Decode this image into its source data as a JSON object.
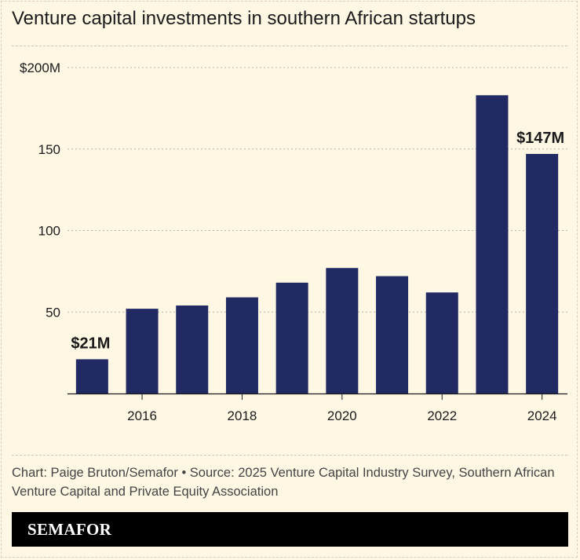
{
  "title": "Venture capital investments in southern African startups",
  "source": "Chart: Paige Bruton/Semafor • Source: 2025 Venture Capital Industry Survey, Southern African Venture Capital and Private Equity Association",
  "brand": "SEMAFOR",
  "colors": {
    "background": "#fdf7e4",
    "bar": "#222a63",
    "text": "#1a1a1a"
  },
  "chart_data": {
    "type": "bar",
    "title": "Venture capital investments in southern African startups",
    "xlabel": "",
    "ylabel": "",
    "categories": [
      2015,
      2016,
      2017,
      2018,
      2019,
      2020,
      2021,
      2022,
      2023,
      2024
    ],
    "values": [
      21,
      52,
      54,
      59,
      68,
      77,
      72,
      62,
      183,
      147
    ],
    "ylim": [
      0,
      200
    ],
    "y_ticks": [
      {
        "value": 50,
        "label": "50"
      },
      {
        "value": 100,
        "label": "100"
      },
      {
        "value": 150,
        "label": "150"
      },
      {
        "value": 200,
        "label": "$200M"
      }
    ],
    "x_ticks": [
      2016,
      2018,
      2020,
      2022,
      2024
    ],
    "annotations": [
      {
        "category": 2015,
        "label": "$21M"
      },
      {
        "category": 2024,
        "label": "$147M"
      }
    ],
    "grid": true
  }
}
